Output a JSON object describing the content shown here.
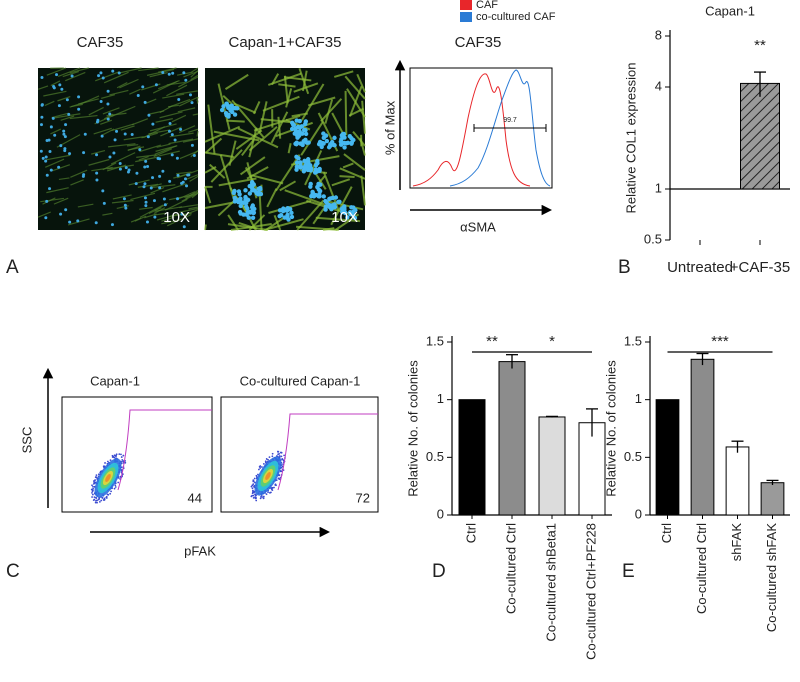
{
  "panels": {
    "A": {
      "label": "A",
      "images": [
        {
          "title": "CAF35",
          "magnification": "10X"
        },
        {
          "title": "Capan-1+CAF35",
          "magnification": "10X"
        }
      ],
      "flow": {
        "title": "CAF35",
        "legend": [
          "CAF",
          "co-cultured CAF"
        ],
        "colors": [
          "#e8262a",
          "#2a7bd5"
        ],
        "y_label": "% of Max",
        "x_label": "αSMA",
        "gate_label": "99.7"
      }
    },
    "C": {
      "label": "C",
      "plots": [
        {
          "title": "Capan-1",
          "gate_value": "44"
        },
        {
          "title": "Co-cultured Capan-1",
          "gate_value": "72"
        }
      ],
      "y_label": "SSC",
      "x_label": "pFAK"
    }
  },
  "chart_data": [
    {
      "type": "bar",
      "panel_label": "B",
      "title": "Capan-1",
      "y_label": "Relative COL1 expression",
      "categories": [
        "Untreated",
        "+CAF-35"
      ],
      "values": [
        1,
        4.2
      ],
      "errors": [
        null,
        0.7
      ],
      "bar_colors": [
        "#999999",
        "#999999"
      ],
      "hatch": true,
      "log_scale": true,
      "ylim": [
        0.5,
        8
      ],
      "yticks": [
        0.5,
        1,
        4,
        8
      ],
      "annotations": [
        {
          "label": "**",
          "categories": [
            1
          ]
        }
      ]
    },
    {
      "type": "bar",
      "panel_label": "D",
      "y_label": "Relative No. of colonies",
      "categories": [
        "Ctrl",
        "Co-cultured Ctrl",
        "Co-cultured shBeta1",
        "Co-cultured Ctrl+PF228"
      ],
      "values": [
        1,
        1.33,
        0.85,
        0.8
      ],
      "errors": [
        null,
        0.06,
        0.005,
        0.12
      ],
      "bar_colors": [
        "#000000",
        "#8c8c8c",
        "#dcdcdc",
        "#ffffff"
      ],
      "hatch": false,
      "log_scale": false,
      "ylim": [
        0,
        1.5
      ],
      "yticks": [
        0,
        0.5,
        1,
        1.5
      ],
      "annotations": [
        {
          "label": "**",
          "categories": [
            0,
            1
          ]
        },
        {
          "label": "*",
          "categories": [
            1,
            3
          ]
        }
      ]
    },
    {
      "type": "bar",
      "panel_label": "E",
      "y_label": "Relative No. of colonies",
      "categories": [
        "Ctrl",
        "Co-cultured Ctrl",
        "shFAK",
        "Co-cultured shFAK"
      ],
      "values": [
        1,
        1.35,
        0.59,
        0.28
      ],
      "errors": [
        null,
        0.05,
        0.05,
        0.02
      ],
      "bar_colors": [
        "#000000",
        "#8c8c8c",
        "#ffffff",
        "#9a9a9a"
      ],
      "hatch": false,
      "log_scale": false,
      "ylim": [
        0,
        1.5
      ],
      "yticks": [
        0,
        0.5,
        1,
        1.5
      ],
      "annotations": [
        {
          "label": "***",
          "categories": [
            0,
            3
          ]
        }
      ]
    }
  ]
}
